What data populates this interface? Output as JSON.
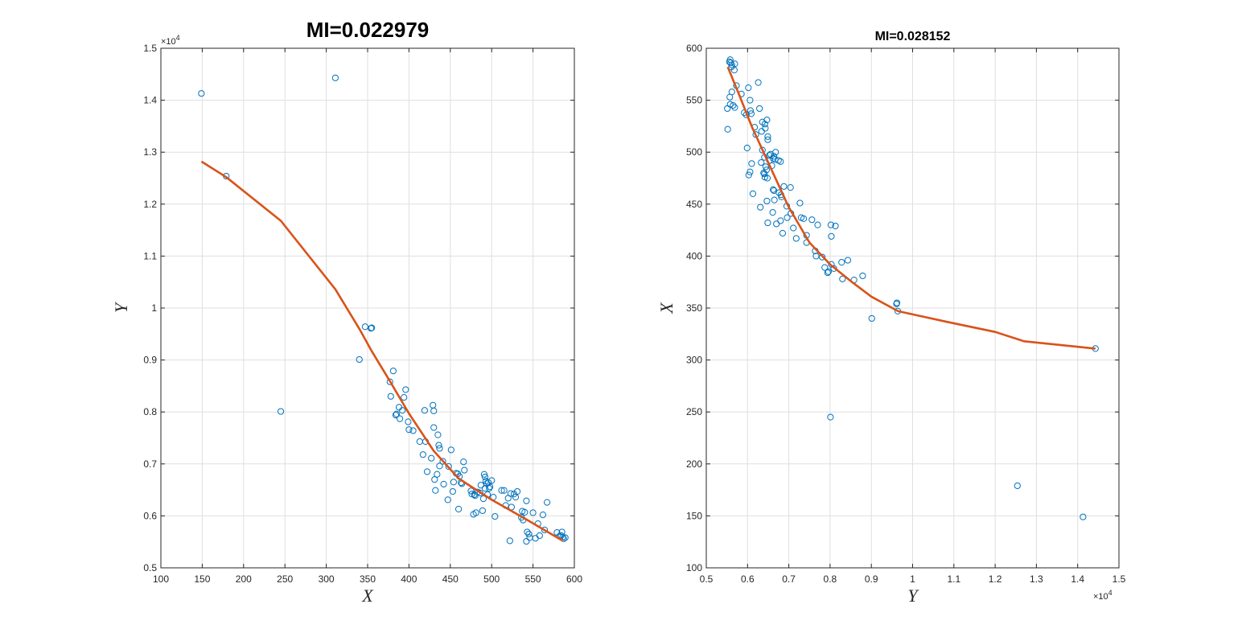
{
  "chart_data": [
    {
      "type": "scatter",
      "title": "MI=0.022979",
      "xlabel": "X",
      "ylabel": "Y",
      "xlim": [
        100,
        600
      ],
      "ylim": [
        5000,
        15000
      ],
      "xticks": [
        100,
        150,
        200,
        250,
        300,
        350,
        400,
        450,
        500,
        550,
        600
      ],
      "yticks": [
        5000,
        6000,
        7000,
        8000,
        9000,
        10000,
        11000,
        12000,
        13000,
        14000,
        15000
      ],
      "ytick_labels": [
        "0.5",
        "0.6",
        "0.7",
        "0.8",
        "0.9",
        "1",
        "1.1",
        "1.2",
        "1.3",
        "1.4",
        "1.5"
      ],
      "y_exponent": "×10^4",
      "grid": true,
      "series": [
        {
          "kind": "scatter",
          "color": "#0072BD",
          "points": [
            [
              149,
              14130
            ],
            [
              179,
              12540
            ],
            [
              245,
              8010
            ],
            [
              311,
              14430
            ],
            [
              340,
              9010
            ],
            [
              347,
              9640
            ],
            [
              354,
              9610
            ],
            [
              355,
              9620
            ],
            [
              377,
              8580
            ],
            [
              378,
              8300
            ],
            [
              381,
              8790
            ],
            [
              384,
              7940
            ],
            [
              385,
              7960
            ],
            [
              388,
              8090
            ],
            [
              389,
              7870
            ],
            [
              392,
              8030
            ],
            [
              394,
              8280
            ],
            [
              396,
              8430
            ],
            [
              399,
              7810
            ],
            [
              400,
              7660
            ],
            [
              405,
              7640
            ],
            [
              413,
              7430
            ],
            [
              417,
              7180
            ],
            [
              419,
              8030
            ],
            [
              420,
              7430
            ],
            [
              422,
              6850
            ],
            [
              427,
              7110
            ],
            [
              429,
              8130
            ],
            [
              430,
              7700
            ],
            [
              430,
              8020
            ],
            [
              431,
              6700
            ],
            [
              432,
              6490
            ],
            [
              434,
              6800
            ],
            [
              435,
              7560
            ],
            [
              436,
              7360
            ],
            [
              437,
              7300
            ],
            [
              437,
              6960
            ],
            [
              441,
              7050
            ],
            [
              442,
              6610
            ],
            [
              447,
              6310
            ],
            [
              448,
              6950
            ],
            [
              451,
              7270
            ],
            [
              453,
              6470
            ],
            [
              454,
              6650
            ],
            [
              457,
              6820
            ],
            [
              459,
              6810
            ],
            [
              460,
              6130
            ],
            [
              461,
              6760
            ],
            [
              463,
              6640
            ],
            [
              464,
              6620
            ],
            [
              466,
              7040
            ],
            [
              467,
              6880
            ],
            [
              475,
              6480
            ],
            [
              476,
              6420
            ],
            [
              478,
              6030
            ],
            [
              479,
              6410
            ],
            [
              480,
              6390
            ],
            [
              481,
              6060
            ],
            [
              483,
              6460
            ],
            [
              486,
              6440
            ],
            [
              487,
              6590
            ],
            [
              489,
              6100
            ],
            [
              490,
              6330
            ],
            [
              491,
              6800
            ],
            [
              492,
              6750
            ],
            [
              492,
              6530
            ],
            [
              493,
              6670
            ],
            [
              494,
              6620
            ],
            [
              495,
              6410
            ],
            [
              496,
              6640
            ],
            [
              497,
              6530
            ],
            [
              498,
              6560
            ],
            [
              500,
              6680
            ],
            [
              502,
              6360
            ],
            [
              504,
              5990
            ],
            [
              512,
              6490
            ],
            [
              515,
              6490
            ],
            [
              517,
              6200
            ],
            [
              520,
              6340
            ],
            [
              522,
              5520
            ],
            [
              523,
              6430
            ],
            [
              524,
              6170
            ],
            [
              527,
              6420
            ],
            [
              529,
              6360
            ],
            [
              531,
              6470
            ],
            [
              536,
              5970
            ],
            [
              537,
              6090
            ],
            [
              538,
              5920
            ],
            [
              540,
              6070
            ],
            [
              542,
              6290
            ],
            [
              542,
              5510
            ],
            [
              543,
              5690
            ],
            [
              545,
              5650
            ],
            [
              546,
              5580
            ],
            [
              550,
              6060
            ],
            [
              553,
              5570
            ],
            [
              556,
              5850
            ],
            [
              558,
              5620
            ],
            [
              562,
              6020
            ],
            [
              564,
              5730
            ],
            [
              567,
              6260
            ],
            [
              579,
              5680
            ],
            [
              582,
              5610
            ],
            [
              584,
              5620
            ],
            [
              585,
              5690
            ],
            [
              586,
              5590
            ],
            [
              587,
              5560
            ],
            [
              589,
              5580
            ]
          ]
        },
        {
          "kind": "line",
          "color": "#D95319",
          "points": [
            [
              149,
              12820
            ],
            [
              179,
              12520
            ],
            [
              245,
              11680
            ],
            [
              311,
              10360
            ],
            [
              340,
              9600
            ],
            [
              355,
              9170
            ],
            [
              377,
              8590
            ],
            [
              400,
              7970
            ],
            [
              430,
              7250
            ],
            [
              460,
              6720
            ],
            [
              500,
              6310
            ],
            [
              540,
              5950
            ],
            [
              586,
              5520
            ]
          ]
        }
      ]
    },
    {
      "type": "scatter",
      "title": "MI=0.028152",
      "xlabel": "Y",
      "ylabel": "X",
      "xlim": [
        5000,
        15000
      ],
      "ylim": [
        100,
        600
      ],
      "xticks": [
        5000,
        6000,
        7000,
        8000,
        9000,
        10000,
        11000,
        12000,
        13000,
        14000,
        15000
      ],
      "xtick_labels": [
        "0.5",
        "0.6",
        "0.7",
        "0.8",
        "0.9",
        "1",
        "1.1",
        "1.2",
        "1.3",
        "1.4",
        "1.5"
      ],
      "yticks": [
        100,
        150,
        200,
        250,
        300,
        350,
        400,
        450,
        500,
        550,
        600
      ],
      "x_exponent": "×10^4",
      "grid": true,
      "series": [
        {
          "kind": "scatter",
          "color": "#0072BD",
          "points": [
            [
              14130,
              149
            ],
            [
              12540,
              179
            ],
            [
              8010,
              245
            ],
            [
              14430,
              311
            ],
            [
              9010,
              340
            ],
            [
              9640,
              347
            ],
            [
              9610,
              354
            ],
            [
              9620,
              355
            ],
            [
              8580,
              377
            ],
            [
              8300,
              378
            ],
            [
              8790,
              381
            ],
            [
              7940,
              384
            ],
            [
              7960,
              385
            ],
            [
              8090,
              388
            ],
            [
              7870,
              389
            ],
            [
              8030,
              392
            ],
            [
              8280,
              394
            ],
            [
              8430,
              396
            ],
            [
              7810,
              399
            ],
            [
              7660,
              400
            ],
            [
              7640,
              405
            ],
            [
              7430,
              413
            ],
            [
              7180,
              417
            ],
            [
              8030,
              419
            ],
            [
              7430,
              420
            ],
            [
              6850,
              422
            ],
            [
              7110,
              427
            ],
            [
              8130,
              429
            ],
            [
              7700,
              430
            ],
            [
              8020,
              430
            ],
            [
              6700,
              431
            ],
            [
              6490,
              432
            ],
            [
              6800,
              434
            ],
            [
              7560,
              435
            ],
            [
              7360,
              436
            ],
            [
              7300,
              437
            ],
            [
              6960,
              437
            ],
            [
              7050,
              441
            ],
            [
              6610,
              442
            ],
            [
              6310,
              447
            ],
            [
              6950,
              448
            ],
            [
              7270,
              451
            ],
            [
              6470,
              453
            ],
            [
              6650,
              454
            ],
            [
              6820,
              457
            ],
            [
              6810,
              459
            ],
            [
              6130,
              460
            ],
            [
              6760,
              461
            ],
            [
              6640,
              463
            ],
            [
              6620,
              464
            ],
            [
              7040,
              466
            ],
            [
              6880,
              467
            ],
            [
              6480,
              475
            ],
            [
              6420,
              476
            ],
            [
              6030,
              478
            ],
            [
              6410,
              479
            ],
            [
              6390,
              480
            ],
            [
              6060,
              481
            ],
            [
              6460,
              483
            ],
            [
              6440,
              486
            ],
            [
              6590,
              487
            ],
            [
              6100,
              489
            ],
            [
              6330,
              490
            ],
            [
              6800,
              491
            ],
            [
              6750,
              492
            ],
            [
              6530,
              492
            ],
            [
              6670,
              493
            ],
            [
              6620,
              494
            ],
            [
              6410,
              495
            ],
            [
              6640,
              496
            ],
            [
              6530,
              497
            ],
            [
              6560,
              498
            ],
            [
              6680,
              500
            ],
            [
              6360,
              502
            ],
            [
              5990,
              504
            ],
            [
              6490,
              512
            ],
            [
              6490,
              515
            ],
            [
              6200,
              517
            ],
            [
              6340,
              520
            ],
            [
              6430,
              523
            ],
            [
              6170,
              524
            ],
            [
              6420,
              527
            ],
            [
              6360,
              529
            ],
            [
              6470,
              531
            ],
            [
              5970,
              536
            ],
            [
              6090,
              537
            ],
            [
              5920,
              538
            ],
            [
              6070,
              540
            ],
            [
              6290,
              542
            ],
            [
              5510,
              542
            ],
            [
              5690,
              543
            ],
            [
              5650,
              545
            ],
            [
              5580,
              546
            ],
            [
              6060,
              550
            ],
            [
              5570,
              553
            ],
            [
              5850,
              556
            ],
            [
              5620,
              558
            ],
            [
              6020,
              562
            ],
            [
              5730,
              564
            ],
            [
              6260,
              567
            ],
            [
              5680,
              579
            ],
            [
              5610,
              582
            ],
            [
              5620,
              584
            ],
            [
              5690,
              585
            ],
            [
              5590,
              586
            ],
            [
              5560,
              587
            ],
            [
              5580,
              589
            ],
            [
              5520,
              522
            ]
          ]
        },
        {
          "kind": "line",
          "color": "#D95319",
          "points": [
            [
              5520,
              582
            ],
            [
              5800,
              555
            ],
            [
              6100,
              525
            ],
            [
              6500,
              490
            ],
            [
              7000,
              447
            ],
            [
              7500,
              413
            ],
            [
              8000,
              392
            ],
            [
              8500,
              376
            ],
            [
              9000,
              361
            ],
            [
              9650,
              347
            ],
            [
              10800,
              337
            ],
            [
              12000,
              327
            ],
            [
              12700,
              318
            ],
            [
              14430,
              311
            ]
          ]
        }
      ]
    }
  ]
}
